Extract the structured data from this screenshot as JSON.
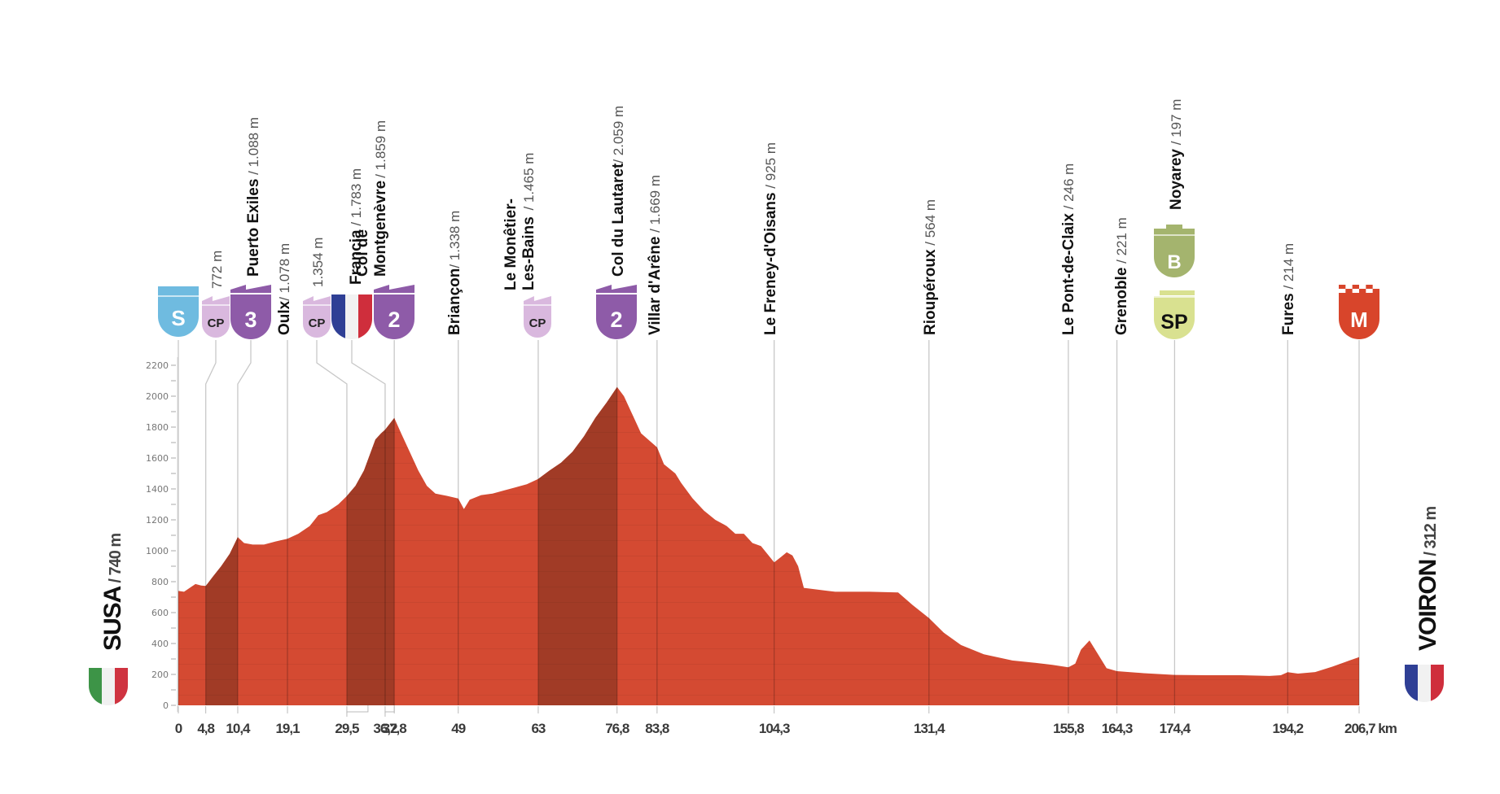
{
  "chart_data": {
    "type": "area",
    "title": "",
    "xlabel": "km",
    "ylabel": "m",
    "xlim": [
      0,
      206.7
    ],
    "ylim": [
      0,
      2200
    ],
    "yticks": [
      0,
      200,
      400,
      600,
      800,
      1000,
      1200,
      1400,
      1600,
      1800,
      2000,
      2200
    ],
    "xticks": [
      {
        "value": 0,
        "label": "0"
      },
      {
        "value": 4.8,
        "label": "4,8"
      },
      {
        "value": 10.4,
        "label": "10,4"
      },
      {
        "value": 19.1,
        "label": "19,1"
      },
      {
        "value": 29.5,
        "label": "29,5"
      },
      {
        "value": 36.2,
        "label": "36,2"
      },
      {
        "value": 37.8,
        "label": "37,8"
      },
      {
        "value": 49,
        "label": "49"
      },
      {
        "value": 63,
        "label": "63"
      },
      {
        "value": 76.8,
        "label": "76,8"
      },
      {
        "value": 83.8,
        "label": "83,8"
      },
      {
        "value": 104.3,
        "label": "104,3"
      },
      {
        "value": 131.4,
        "label": "131,4"
      },
      {
        "value": 155.8,
        "label": "155,8"
      },
      {
        "value": 164.3,
        "label": "164,3"
      },
      {
        "value": 174.4,
        "label": "174,4"
      },
      {
        "value": 194.2,
        "label": "194,2"
      },
      {
        "value": 206.7,
        "label": "206,7 km"
      }
    ],
    "grid": false,
    "series": [
      {
        "name": "Elevation",
        "x": [
          0,
          1,
          2,
          3,
          4,
          4.8,
          6,
          7.5,
          9,
          10.4,
          11.5,
          13,
          15,
          17,
          19.1,
          21,
          23,
          24.5,
          26,
          28,
          29.5,
          31,
          32.5,
          33.5,
          34.5,
          35.5,
          36.2,
          37.8,
          39,
          40.5,
          42,
          43.5,
          45,
          47,
          49,
          50,
          51,
          53,
          55,
          57,
          59,
          61,
          63,
          65,
          67,
          69,
          71,
          73,
          75,
          76.8,
          78,
          79.5,
          81,
          83.8,
          85,
          87,
          88,
          90,
          92,
          94,
          96,
          97.5,
          99,
          100.5,
          102,
          104.3,
          105.5,
          106.5,
          107.5,
          108.5,
          109.5,
          115,
          121,
          126,
          128.5,
          131.4,
          134,
          137,
          141,
          146,
          150,
          153,
          155.8,
          157,
          158,
          159.5,
          161,
          162.5,
          164.3,
          169,
          174.4,
          180,
          186,
          191,
          193,
          194.2,
          196,
          199,
          202,
          205,
          206.7
        ],
        "y": [
          740,
          735,
          760,
          785,
          775,
          772,
          830,
          900,
          980,
          1088,
          1050,
          1040,
          1040,
          1060,
          1078,
          1110,
          1160,
          1230,
          1250,
          1300,
          1354,
          1420,
          1520,
          1620,
          1720,
          1760,
          1783,
          1859,
          1760,
          1640,
          1520,
          1420,
          1370,
          1355,
          1338,
          1270,
          1330,
          1360,
          1370,
          1390,
          1410,
          1430,
          1465,
          1520,
          1570,
          1640,
          1740,
          1860,
          1960,
          2059,
          2000,
          1880,
          1760,
          1669,
          1560,
          1500,
          1440,
          1340,
          1260,
          1200,
          1160,
          1110,
          1110,
          1050,
          1030,
          925,
          960,
          990,
          970,
          900,
          760,
          735,
          735,
          730,
          650,
          564,
          470,
          390,
          330,
          290,
          275,
          262,
          246,
          270,
          360,
          420,
          330,
          240,
          221,
          208,
          197,
          195,
          195,
          190,
          195,
          214,
          205,
          215,
          250,
          290,
          312
        ]
      }
    ],
    "climbs": [
      {
        "from": 4.8,
        "to": 10.4,
        "category": "3"
      },
      {
        "from": 29.5,
        "to": 37.8,
        "category": "2"
      },
      {
        "from": 63,
        "to": 76.8,
        "category": "2"
      }
    ]
  },
  "start": {
    "name": "SUSA",
    "altitude": "/ 740 m",
    "flag": "italy-flag"
  },
  "finish": {
    "name": "VOIRON",
    "altitude": "/ 312 m",
    "flag": "france-flag"
  },
  "colors": {
    "profile": "#d44a32",
    "climb": "#a13b26",
    "start_badge": "#6fbbe0",
    "cp_badge": "#d9b8de",
    "kom_badge": "#8e5ba8",
    "bonus_badge": "#a4b46e",
    "sprint_badge": "#d9e190",
    "finish_badge": "#d8452b"
  },
  "waypoints": [
    {
      "km": 0,
      "name": "",
      "alt": "",
      "badge": "S",
      "badge_type": "start"
    },
    {
      "km": 4.8,
      "name": "",
      "alt": "772 m",
      "badge": "CP",
      "badge_type": "cp"
    },
    {
      "km": 10.4,
      "name": "Puerto Exiles",
      "alt": " / 1.088 m",
      "badge": "3",
      "badge_type": "kom"
    },
    {
      "km": 19.1,
      "name": "Oulx",
      "alt": "/ 1.078 m",
      "badge": "",
      "badge_type": "none"
    },
    {
      "km": 29.5,
      "name": "",
      "alt": "1.354 m",
      "badge": "CP",
      "badge_type": "cp"
    },
    {
      "km": 36.2,
      "name": "Francia",
      "alt": " / 1.783 m",
      "badge": "",
      "badge_type": "border"
    },
    {
      "km": 37.8,
      "name": "Col de",
      "name2": "Montgenèvre",
      "alt": "/ 1.859 m",
      "badge": "2",
      "badge_type": "kom"
    },
    {
      "km": 49,
      "name": "Briançon",
      "alt": "/ 1.338 m",
      "badge": "",
      "badge_type": "none"
    },
    {
      "km": 63,
      "name": "Le Monêtier-",
      "name2": "Les-Bains",
      "alt": " / 1.465 m",
      "badge": "CP",
      "badge_type": "cp"
    },
    {
      "km": 76.8,
      "name": "Col du Lautaret",
      "alt": "/ 2.059 m",
      "badge": "2",
      "badge_type": "kom"
    },
    {
      "km": 83.8,
      "name": "Villar d'Arêne",
      "alt": " / 1.669 m",
      "badge": "",
      "badge_type": "none"
    },
    {
      "km": 104.3,
      "name": "Le Freney-d'Oisans",
      "alt": " / 925 m",
      "badge": "",
      "badge_type": "none"
    },
    {
      "km": 131.4,
      "name": "Rioupéroux",
      "alt": " / 564 m",
      "badge": "",
      "badge_type": "none"
    },
    {
      "km": 155.8,
      "name": "Le Pont-de-Claix",
      "alt": " / 246 m",
      "badge": "",
      "badge_type": "none"
    },
    {
      "km": 164.3,
      "name": "Grenoble",
      "alt": " / 221 m",
      "badge": "",
      "badge_type": "none"
    },
    {
      "km": 174.4,
      "name": "Noyarey",
      "alt": " / 197 m",
      "badge": "SP",
      "badge_type": "sprint",
      "badge2": "B"
    },
    {
      "km": 194.2,
      "name": "Fures",
      "alt": " / 214 m",
      "badge": "",
      "badge_type": "none"
    },
    {
      "km": 206.7,
      "name": "",
      "alt": "",
      "badge": "M",
      "badge_type": "finish"
    }
  ]
}
